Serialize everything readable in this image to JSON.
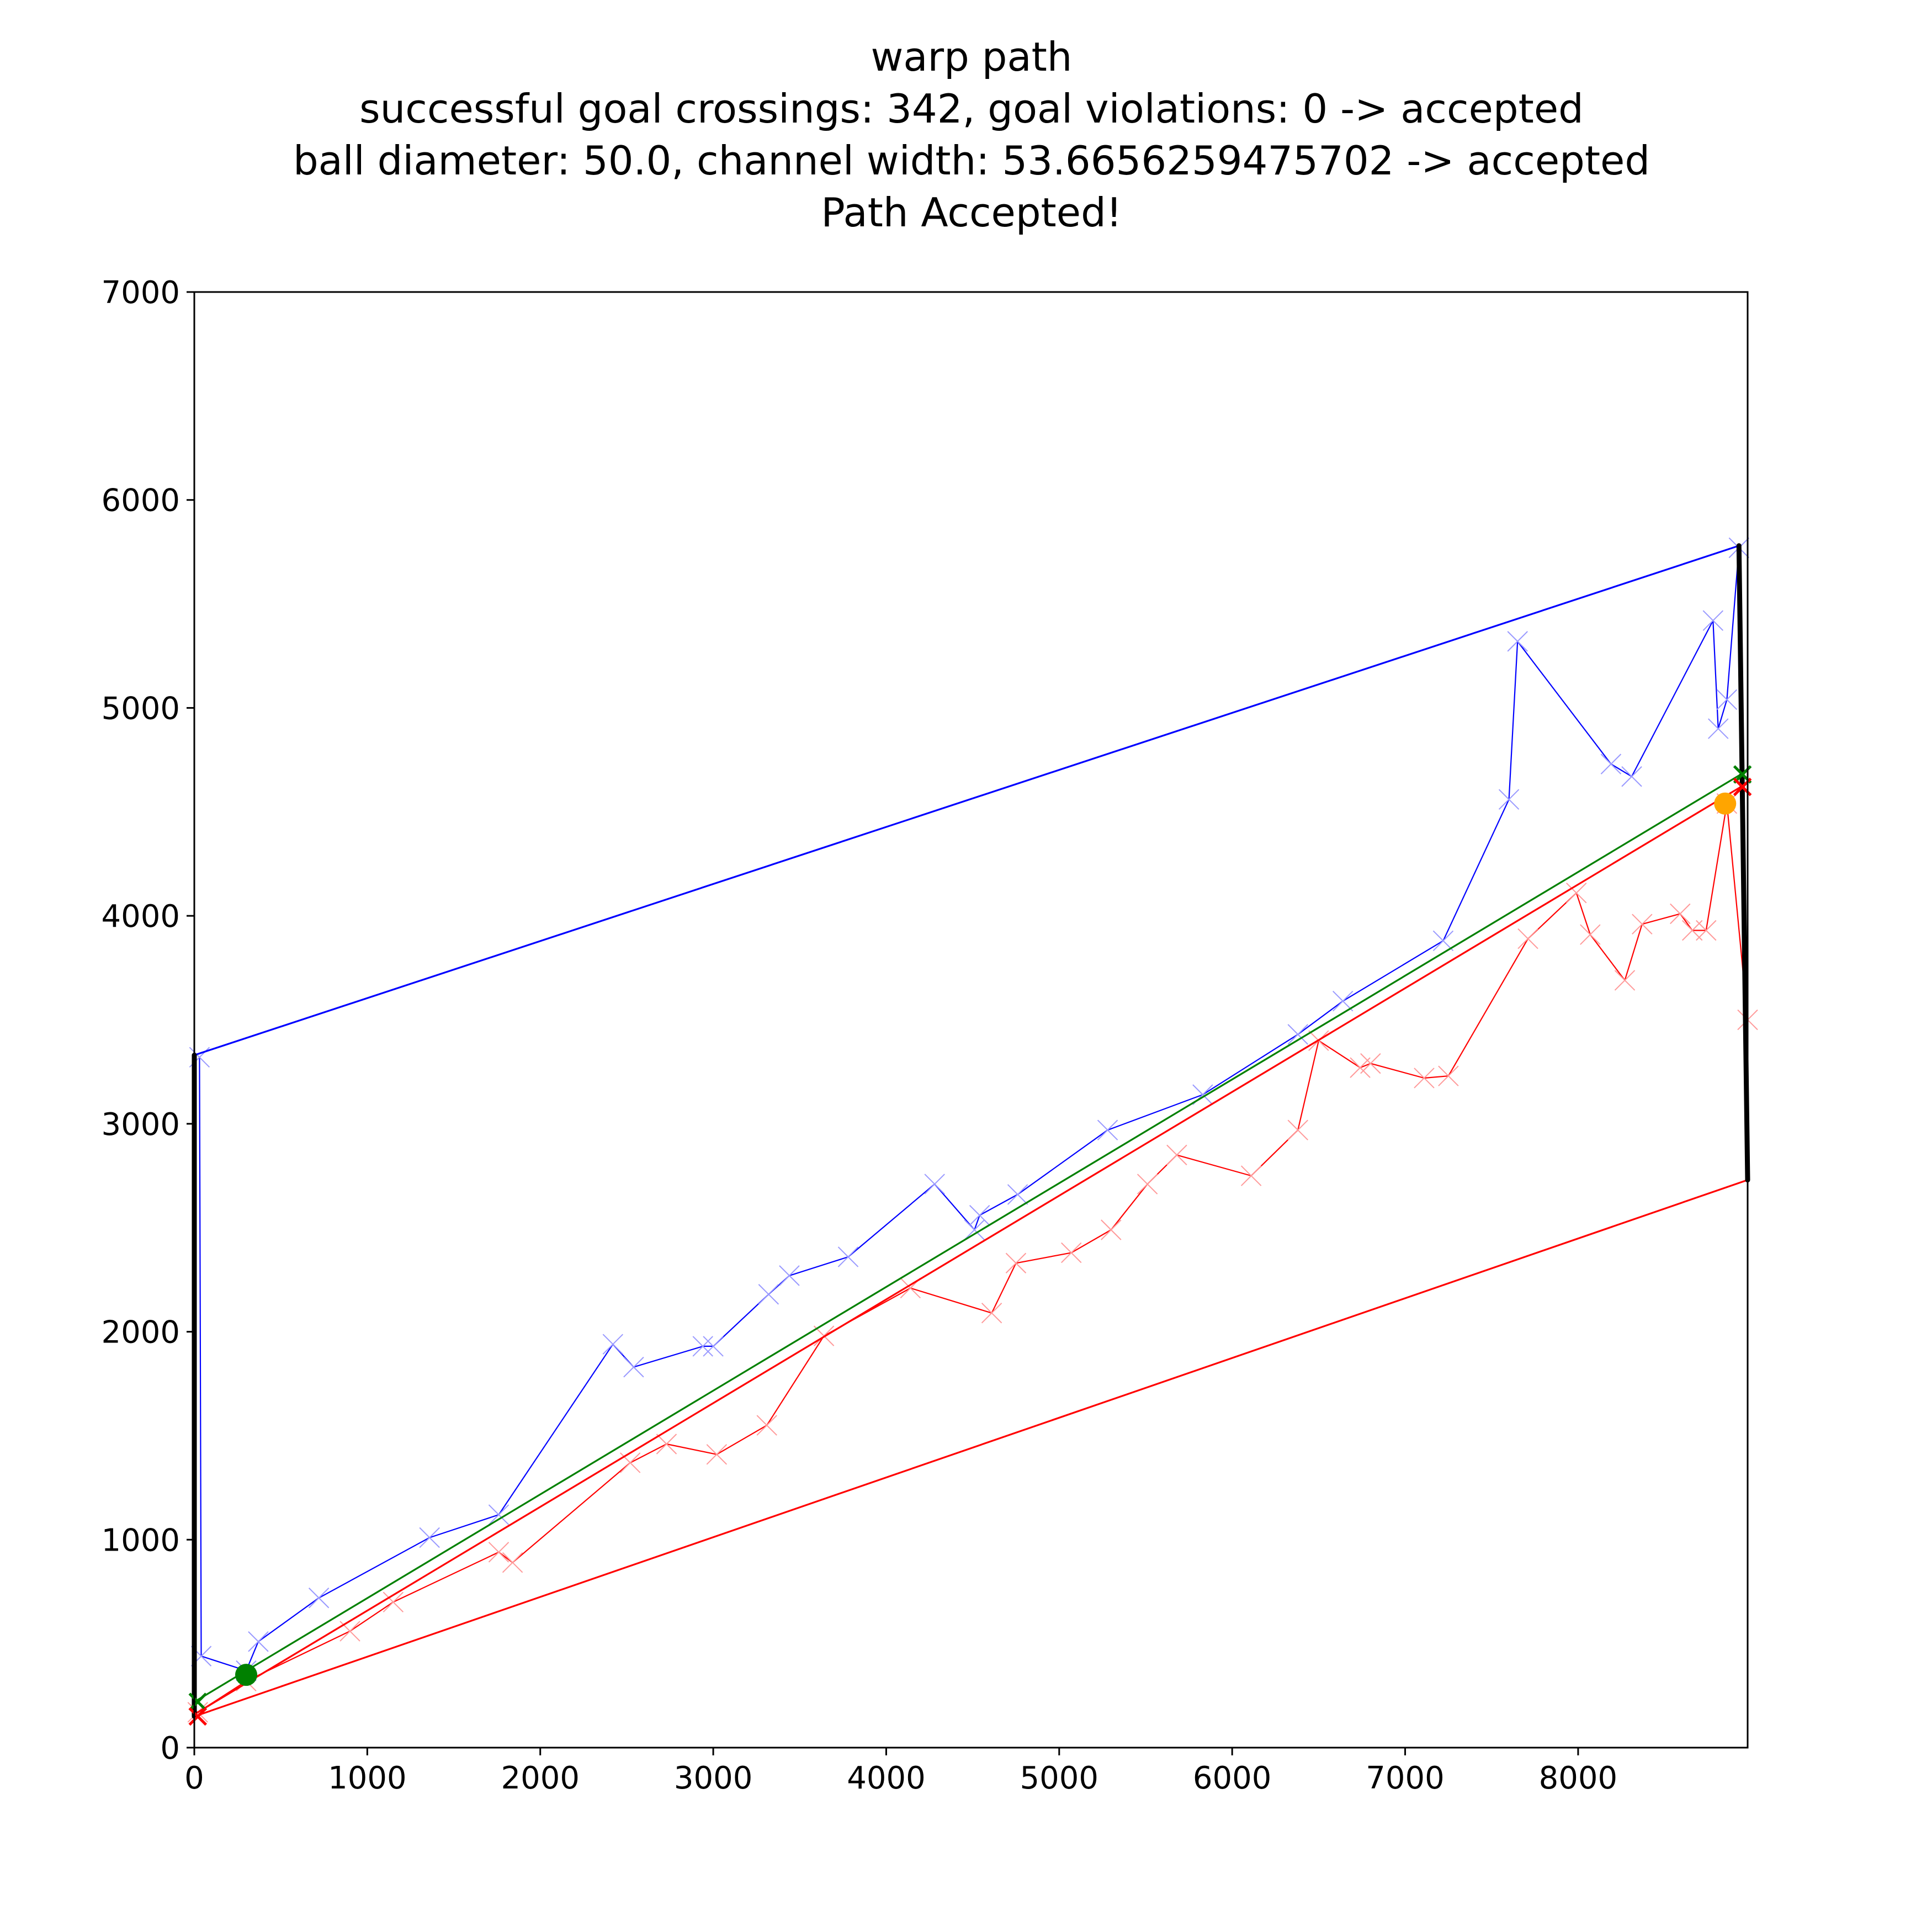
{
  "chart_data": {
    "type": "line",
    "title_lines": [
      "warp path",
      "successful goal crossings: 342, goal violations: 0 -> accepted",
      "ball diameter: 50.0, channel width: 53.6656259475702 -> accepted",
      "Path Accepted!"
    ],
    "xlabel": "",
    "ylabel": "",
    "xlim": [
      0,
      8980
    ],
    "ylim": [
      0,
      7000
    ],
    "x_ticks": [
      "0",
      "1000",
      "2000",
      "3000",
      "4000",
      "5000",
      "6000",
      "7000",
      "8000"
    ],
    "y_ticks": [
      "0",
      "1000",
      "2000",
      "3000",
      "4000",
      "5000",
      "6000",
      "7000"
    ],
    "grid": false,
    "series": [
      {
        "color": "#0000ff",
        "line_width": "thin",
        "marker": "x",
        "points": [
          [
            30,
            3320
          ],
          [
            40,
            440
          ],
          [
            300,
            370
          ],
          [
            370,
            510
          ],
          [
            720,
            720
          ],
          [
            1360,
            1010
          ],
          [
            1760,
            1120
          ],
          [
            2420,
            1940
          ],
          [
            2540,
            1830
          ],
          [
            2940,
            1930
          ],
          [
            3000,
            1930
          ],
          [
            3320,
            2180
          ],
          [
            3440,
            2270
          ],
          [
            3780,
            2360
          ],
          [
            4280,
            2710
          ],
          [
            4510,
            2490
          ],
          [
            4540,
            2560
          ],
          [
            4760,
            2660
          ],
          [
            5280,
            2970
          ],
          [
            5830,
            3140
          ],
          [
            6380,
            3430
          ],
          [
            6640,
            3590
          ],
          [
            7220,
            3880
          ],
          [
            7600,
            4560
          ],
          [
            7650,
            5320
          ],
          [
            8190,
            4730
          ],
          [
            8310,
            4670
          ],
          [
            8780,
            5420
          ],
          [
            8810,
            4900
          ],
          [
            8860,
            5040
          ],
          [
            8930,
            5770
          ]
        ]
      },
      {
        "color": "#ff0000",
        "line_width": "thin",
        "marker": "x",
        "points": [
          [
            20,
            170
          ],
          [
            300,
            320
          ],
          [
            900,
            560
          ],
          [
            1150,
            700
          ],
          [
            1760,
            940
          ],
          [
            1840,
            890
          ],
          [
            2520,
            1370
          ],
          [
            2730,
            1460
          ],
          [
            3020,
            1410
          ],
          [
            3310,
            1550
          ],
          [
            3640,
            1980
          ],
          [
            4140,
            2210
          ],
          [
            4610,
            2090
          ],
          [
            4750,
            2330
          ],
          [
            5070,
            2380
          ],
          [
            5300,
            2490
          ],
          [
            5510,
            2710
          ],
          [
            5680,
            2850
          ],
          [
            6110,
            2750
          ],
          [
            6380,
            2970
          ],
          [
            6500,
            3400
          ],
          [
            6740,
            3270
          ],
          [
            6800,
            3290
          ],
          [
            7110,
            3220
          ],
          [
            7250,
            3230
          ],
          [
            7710,
            3890
          ],
          [
            7990,
            4110
          ],
          [
            8070,
            3910
          ],
          [
            8270,
            3690
          ],
          [
            8370,
            3960
          ],
          [
            8590,
            4010
          ],
          [
            8660,
            3930
          ],
          [
            8740,
            3930
          ],
          [
            8860,
            4540
          ],
          [
            8980,
            3500
          ]
        ]
      },
      {
        "color": "#0000ff",
        "line_width": "thick",
        "points": [
          [
            0,
            3330
          ],
          [
            8930,
            5780
          ]
        ]
      },
      {
        "color": "#ff0000",
        "line_width": "thick",
        "points": [
          [
            0,
            150
          ],
          [
            8980,
            2730
          ]
        ]
      },
      {
        "color": "#ff0000",
        "line_width": "thick",
        "points": [
          [
            0,
            160
          ],
          [
            8940,
            4620
          ]
        ]
      },
      {
        "color": "#008000",
        "line_width": "thick",
        "points": [
          [
            0,
            220
          ],
          [
            8940,
            4680
          ]
        ]
      },
      {
        "color": "#000000",
        "line_width": "boundary",
        "points": [
          [
            0,
            150
          ],
          [
            0,
            3330
          ]
        ]
      },
      {
        "color": "#000000",
        "line_width": "boundary",
        "points": [
          [
            8930,
            5780
          ],
          [
            8980,
            2730
          ]
        ]
      }
    ],
    "markers": [
      {
        "kind": "dot",
        "color": "#008000",
        "x": 300,
        "y": 350
      },
      {
        "kind": "dot",
        "color": "#ffa500",
        "x": 8850,
        "y": 4540
      },
      {
        "kind": "cross",
        "color": "#008000",
        "x": 20,
        "y": 220
      },
      {
        "kind": "cross",
        "color": "#ff0000",
        "x": 20,
        "y": 150
      },
      {
        "kind": "cross",
        "color": "#008000",
        "x": 8950,
        "y": 4680
      },
      {
        "kind": "cross",
        "color": "#ff0000",
        "x": 8950,
        "y": 4620
      }
    ]
  }
}
